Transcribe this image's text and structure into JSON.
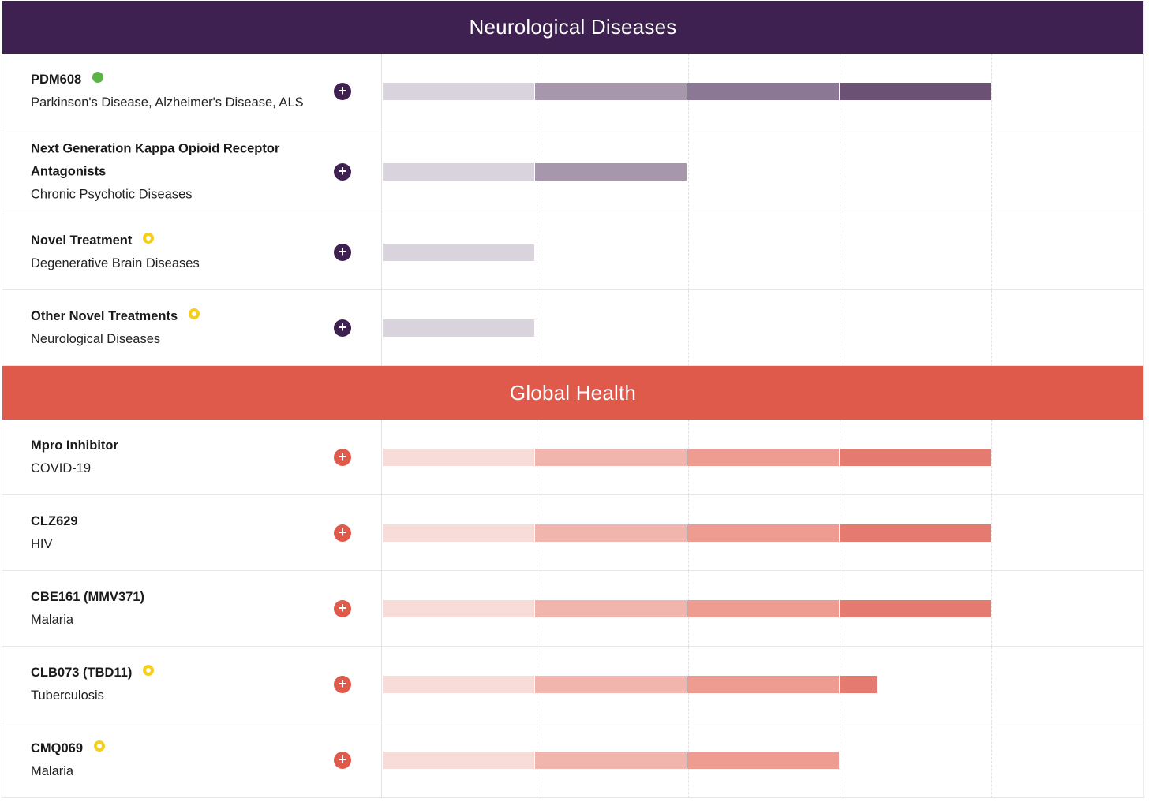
{
  "colors": {
    "neuro_header": "#3e2150",
    "neuro_btn": "#3e2150",
    "neuro_phases": [
      "#d9d3dd",
      "#a797ad",
      "#8b7895",
      "#6b5174"
    ],
    "global_header": "#e05a4b",
    "global_btn": "#e05a4b",
    "global_phases": [
      "#f8dcd9",
      "#f1b5ae",
      "#ee9b92",
      "#e57a70"
    ]
  },
  "sections": [
    {
      "key": "neuro",
      "title": "Neurological Diseases",
      "programs": [
        {
          "name": "PDM608",
          "indication": "Parkinson's Disease, Alzheimer's Disease, ALS",
          "status": "green",
          "progress_phases": 4.0,
          "tall": false
        },
        {
          "name": "Next Generation Kappa Opioid Receptor Antagonists",
          "indication": "Chronic Psychotic Diseases",
          "status": "none",
          "progress_phases": 2.0,
          "tall": true
        },
        {
          "name": "Novel Treatment",
          "indication": "Degenerative Brain Diseases",
          "status": "yellow",
          "progress_phases": 1.0,
          "tall": false
        },
        {
          "name": "Other Novel Treatments",
          "indication": "Neurological Diseases",
          "status": "yellow",
          "progress_phases": 1.0,
          "tall": false
        }
      ]
    },
    {
      "key": "global",
      "title": "Global Health",
      "programs": [
        {
          "name": "Mpro Inhibitor",
          "indication": "COVID-19",
          "status": "none",
          "progress_phases": 4.0,
          "tall": false
        },
        {
          "name": "CLZ629",
          "indication": "HIV",
          "status": "none",
          "progress_phases": 4.0,
          "tall": false
        },
        {
          "name": "CBE161 (MMV371)",
          "indication": "Malaria",
          "status": "none",
          "progress_phases": 4.0,
          "tall": false
        },
        {
          "name": "CLB073 (TBD11)",
          "indication": "Tuberculosis",
          "status": "yellow",
          "progress_phases": 3.25,
          "tall": false
        },
        {
          "name": "CMQ069",
          "indication": "Malaria",
          "status": "yellow",
          "progress_phases": 3.0,
          "tall": false
        }
      ]
    }
  ]
}
